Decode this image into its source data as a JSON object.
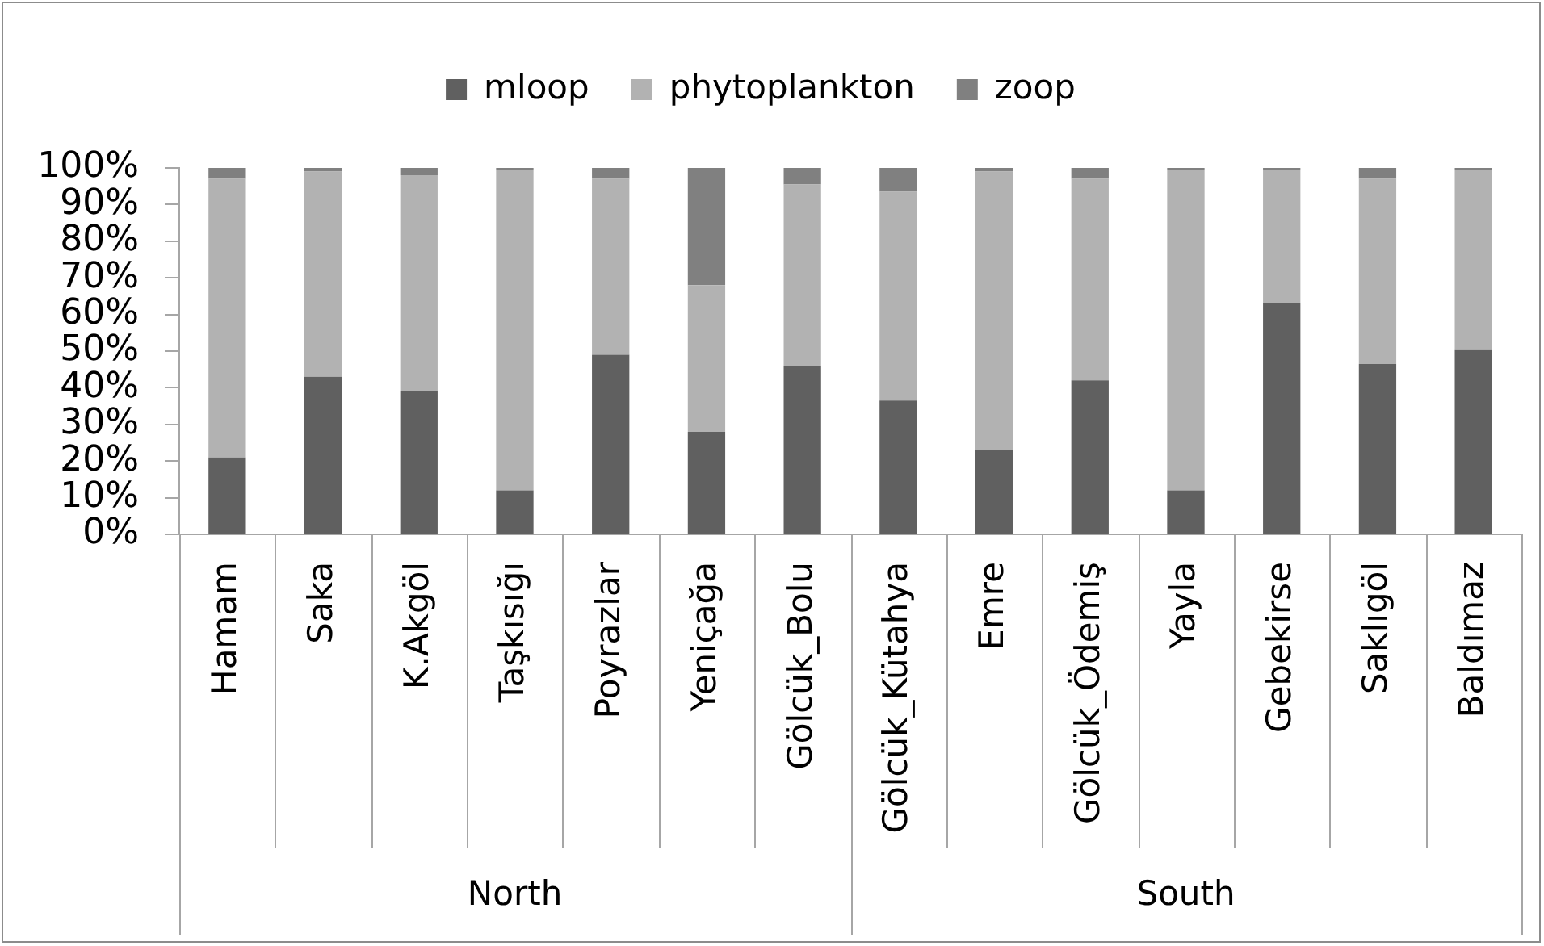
{
  "chart_data": {
    "type": "bar",
    "stacked": true,
    "legend": "top",
    "categories": [
      "Hamam",
      "Saka",
      "K.Akgöl",
      "Taşkısığı",
      "Poyrazlar",
      "Yeniçağa",
      "Gölcük_Bolu",
      "Gölcük_Kütahya",
      "Emre",
      "Gölcük_Ödemiş",
      "Yayla",
      "Gebekirse",
      "Saklıgöl",
      "Baldımaz"
    ],
    "series": [
      {
        "name": "mloop",
        "color": "#606060",
        "values": [
          21,
          43,
          39,
          12,
          49,
          28,
          46,
          36.5,
          23,
          42,
          12,
          63,
          46.5,
          50.5
        ]
      },
      {
        "name": "phytoplankton",
        "color": "#b2b2b2",
        "values": [
          76,
          56,
          59,
          87.5,
          48,
          40,
          49.5,
          57,
          76,
          55,
          87.5,
          36.5,
          50.5,
          49
        ]
      },
      {
        "name": "zoop",
        "color": "#808080",
        "values": [
          3,
          1,
          2,
          0.5,
          3,
          32,
          4.5,
          6.5,
          1,
          3,
          0.5,
          0.5,
          3,
          0.5
        ]
      }
    ],
    "ylim": [
      0,
      100
    ],
    "yticks": [
      {
        "value": 0,
        "label": "0%"
      },
      {
        "value": 10,
        "label": "10%"
      },
      {
        "value": 20,
        "label": "20%"
      },
      {
        "value": 30,
        "label": "30%"
      },
      {
        "value": 40,
        "label": "40%"
      },
      {
        "value": 50,
        "label": "50%"
      },
      {
        "value": 60,
        "label": "60%"
      },
      {
        "value": 70,
        "label": "70%"
      },
      {
        "value": 80,
        "label": "80%"
      },
      {
        "value": 90,
        "label": "90%"
      },
      {
        "value": 100,
        "label": "100%"
      }
    ],
    "annotations": [
      "North",
      "South"
    ]
  }
}
